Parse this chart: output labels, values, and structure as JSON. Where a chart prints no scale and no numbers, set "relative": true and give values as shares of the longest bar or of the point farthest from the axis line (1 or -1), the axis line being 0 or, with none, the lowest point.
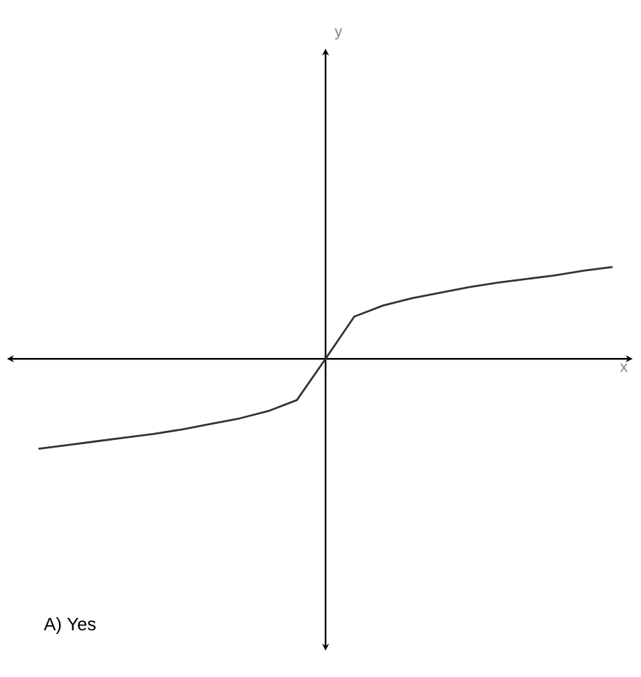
{
  "chart_data": {
    "type": "line",
    "relative": true,
    "xlabel": "x",
    "categories": [
      null,
      null,
      null,
      null,
      null,
      null,
      null,
      null,
      null,
      null,
      null,
      null,
      null,
      null,
      null,
      null,
      null,
      null,
      null,
      null,
      null
    ],
    "series": [
      {
        "color": "#333333",
        "values": [
          -0.98,
          -0.94,
          -0.9,
          -0.86,
          -0.82,
          -0.77,
          -0.71,
          -0.65,
          -0.57,
          -0.45,
          0,
          0.46,
          0.58,
          0.66,
          0.72,
          0.78,
          0.83,
          0.87,
          0.91,
          0.96,
          1.0
        ]
      }
    ],
    "annotations": [
      "A) Yes",
      "y"
    ],
    "marker": "none",
    "line_style": "solid"
  }
}
